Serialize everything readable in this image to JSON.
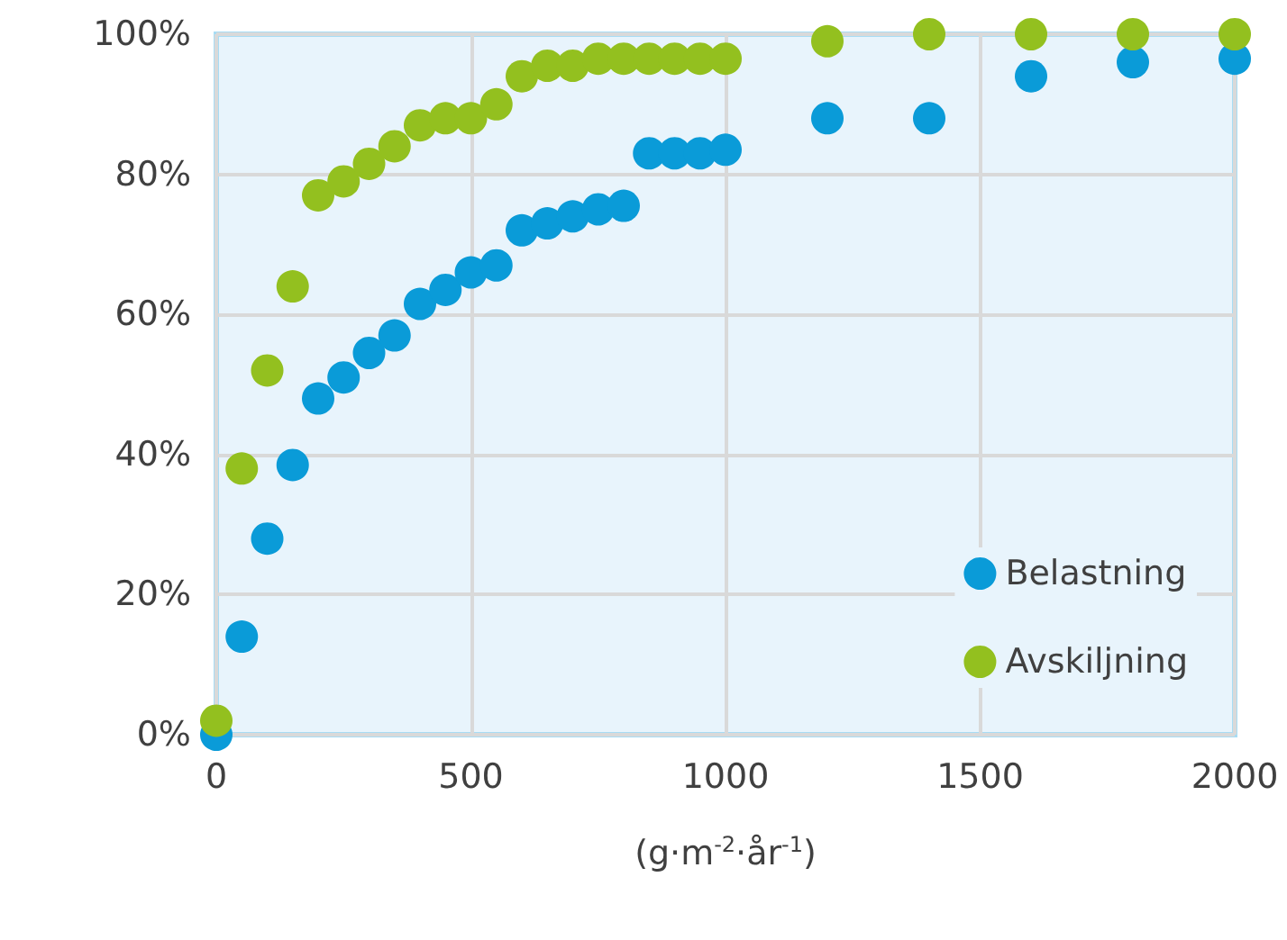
{
  "chart_data": {
    "type": "scatter",
    "xlabel": "(g·m$^{-2}$·år$^{-1}$)",
    "xlim": [
      0,
      2000
    ],
    "xticks": [
      0,
      500,
      1000,
      1500,
      2000
    ],
    "ylim": [
      0,
      100
    ],
    "yticks": [
      {
        "value": 0,
        "label": "0%"
      },
      {
        "value": 20,
        "label": "20%"
      },
      {
        "value": 40,
        "label": "40%"
      },
      {
        "value": 60,
        "label": "60%"
      },
      {
        "value": 80,
        "label": "80%"
      },
      {
        "value": 100,
        "label": "100%"
      }
    ],
    "x": [
      0,
      50,
      100,
      150,
      200,
      250,
      300,
      350,
      400,
      450,
      500,
      550,
      600,
      650,
      700,
      750,
      800,
      850,
      900,
      950,
      1000,
      1200,
      1400,
      1600,
      1800,
      2000
    ],
    "series": [
      {
        "name": "Belastning",
        "color": "#0a9bd8",
        "values": [
          0,
          14,
          28,
          38.5,
          48,
          51,
          54.5,
          57,
          61.5,
          63.5,
          66,
          67,
          72,
          73,
          74,
          75,
          75.5,
          83,
          83,
          83,
          83.5,
          88,
          88,
          94,
          96,
          96.5
        ]
      },
      {
        "name": "Avskiljning",
        "color": "#93c01f",
        "values": [
          2,
          38,
          52,
          64,
          77,
          79,
          81.5,
          84,
          87,
          88,
          88,
          90,
          94,
          95.5,
          95.5,
          96.5,
          96.5,
          96.5,
          96.5,
          96.5,
          96.5,
          99,
          100,
          100,
          100,
          100
        ]
      }
    ],
    "grid": true,
    "legend": "bottom right",
    "marker": "circle"
  }
}
